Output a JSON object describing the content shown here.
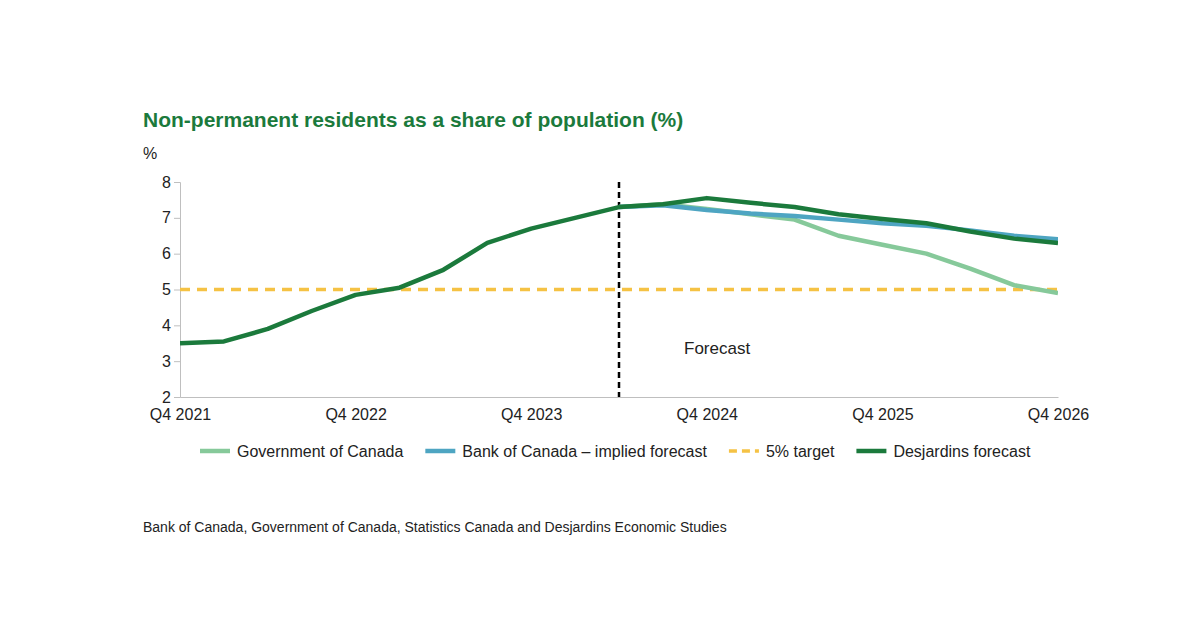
{
  "chart_data": {
    "type": "line",
    "title": "Non-permanent residents as a share of population (%)",
    "y_label": "%",
    "source": "Bank of Canada, Government of Canada, Statistics Canada and Desjardins Economic Studies",
    "categories": [
      "Q4 2021",
      null,
      null,
      null,
      "Q4 2022",
      null,
      null,
      null,
      "Q4 2023",
      null,
      null,
      null,
      "Q4 2024",
      null,
      null,
      null,
      "Q4 2025",
      null,
      null,
      null,
      "Q4 2026"
    ],
    "series": [
      {
        "name": "Government of Canada",
        "color": "#86c99a",
        "line_style": "solid",
        "values": [
          null,
          null,
          null,
          null,
          null,
          null,
          null,
          null,
          null,
          null,
          7.3,
          7.38,
          7.25,
          7.1,
          6.95,
          6.5,
          6.25,
          6.0,
          5.58,
          5.12,
          4.9
        ]
      },
      {
        "name": "Bank of Canada – implied forecast",
        "color": "#4ea5c2",
        "line_style": "solid",
        "values": [
          null,
          null,
          null,
          null,
          null,
          null,
          null,
          null,
          null,
          null,
          7.3,
          7.35,
          7.22,
          7.12,
          7.05,
          6.95,
          6.85,
          6.78,
          6.65,
          6.5,
          6.4
        ]
      },
      {
        "name": "5% target",
        "color": "#f5c244",
        "line_style": "dashed",
        "values": [
          5,
          5,
          5,
          5,
          5,
          5,
          5,
          5,
          5,
          5,
          5,
          5,
          5,
          5,
          5,
          5,
          5,
          5,
          5,
          5,
          5
        ]
      },
      {
        "name": "Desjardins forecast",
        "color": "#1b7a3c",
        "line_style": "solid",
        "values": [
          3.5,
          3.55,
          3.9,
          4.4,
          4.85,
          5.05,
          5.55,
          6.3,
          6.7,
          7.0,
          7.3,
          7.38,
          7.55,
          7.42,
          7.3,
          7.1,
          6.97,
          6.85,
          6.62,
          6.42,
          6.3
        ]
      }
    ],
    "annotations": [
      {
        "text": "Forecast",
        "x": 10
      }
    ],
    "ylim": [
      2,
      8
    ],
    "yticks": [
      2,
      3,
      4,
      5,
      6,
      7,
      8
    ],
    "grid": false,
    "legend": "bottom"
  }
}
